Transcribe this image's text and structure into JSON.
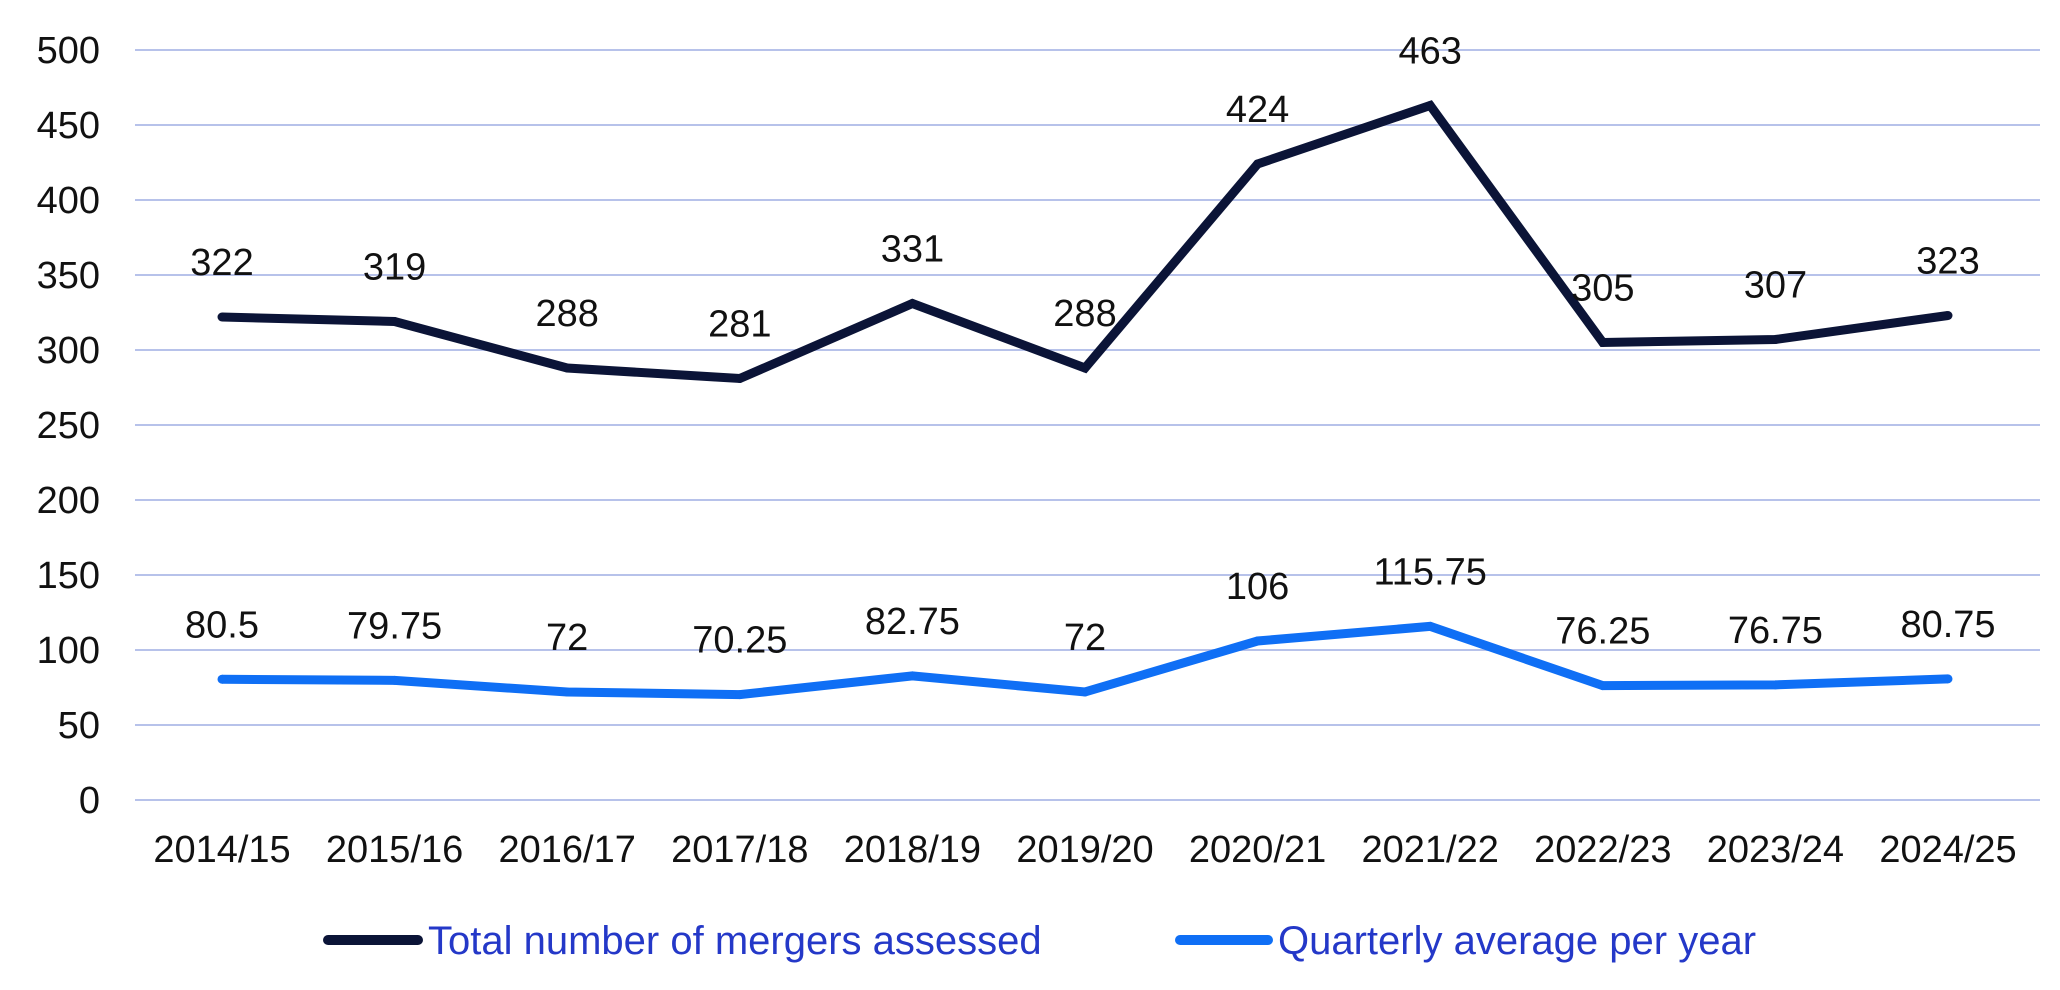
{
  "chart_data": {
    "type": "line",
    "categories": [
      "2014/15",
      "2015/16",
      "2016/17",
      "2017/18",
      "2018/19",
      "2019/20",
      "2020/21",
      "2021/22",
      "2022/23",
      "2023/24",
      "2024/25"
    ],
    "series": [
      {
        "name": "Total number of mergers assessed",
        "color": "#0b1437",
        "values": [
          322,
          319,
          288,
          281,
          331,
          288,
          424,
          463,
          305,
          307,
          323
        ],
        "labels": [
          "322",
          "319",
          "288",
          "281",
          "331",
          "288",
          "424",
          "463",
          "305",
          "307",
          "323"
        ]
      },
      {
        "name": "Quarterly average per year",
        "color": "#0f6ff5",
        "values": [
          80.5,
          79.75,
          72,
          70.25,
          82.75,
          72,
          106,
          115.75,
          76.25,
          76.75,
          80.75
        ],
        "labels": [
          "80.5",
          "79.75",
          "72",
          "70.25",
          "82.75",
          "72",
          "106",
          "115.75",
          "76.25",
          "76.75",
          "80.75"
        ]
      }
    ],
    "ylim": [
      0,
      500
    ],
    "yticks": [
      "0",
      "50",
      "100",
      "150",
      "200",
      "250",
      "300",
      "350",
      "400",
      "450",
      "500"
    ],
    "xlabel": "",
    "ylabel": "",
    "grid": true,
    "legend": "bottom"
  }
}
